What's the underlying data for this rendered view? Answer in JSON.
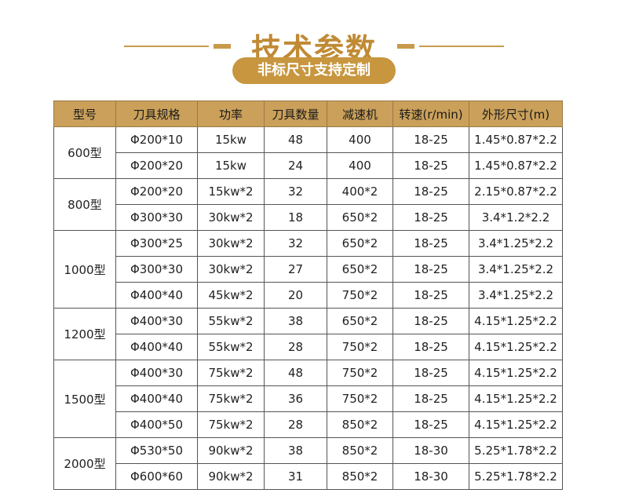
{
  "header": {
    "title": "技术参数",
    "subtitle": "非标尺寸支持定制"
  },
  "colors": {
    "gold": "#c89a4c",
    "header_bg": "#caa05a"
  },
  "table": {
    "columns": [
      "型号",
      "刀具规格",
      "功率",
      "刀具数量",
      "减速机",
      "转速(r/min)",
      "外形尺寸(m)"
    ],
    "groups": [
      {
        "model": "600型",
        "rows": [
          [
            "Φ200*10",
            "15kw",
            "48",
            "400",
            "18-25",
            "1.45*0.87*2.2"
          ],
          [
            "Φ200*20",
            "15kw",
            "24",
            "400",
            "18-25",
            "1.45*0.87*2.2"
          ]
        ]
      },
      {
        "model": "800型",
        "rows": [
          [
            "Φ200*20",
            "15kw*2",
            "32",
            "400*2",
            "18-25",
            "2.15*0.87*2.2"
          ],
          [
            "Φ300*30",
            "30kw*2",
            "18",
            "650*2",
            "18-25",
            "3.4*1.2*2.2"
          ]
        ]
      },
      {
        "model": "1000型",
        "rows": [
          [
            "Φ300*25",
            "30kw*2",
            "32",
            "650*2",
            "18-25",
            "3.4*1.25*2.2"
          ],
          [
            "Φ300*30",
            "30kw*2",
            "27",
            "650*2",
            "18-25",
            "3.4*1.25*2.2"
          ],
          [
            "Φ400*40",
            "45kw*2",
            "20",
            "750*2",
            "18-25",
            "3.4*1.25*2.2"
          ]
        ]
      },
      {
        "model": "1200型",
        "rows": [
          [
            "Φ400*30",
            "55kw*2",
            "38",
            "650*2",
            "18-25",
            "4.15*1.25*2.2"
          ],
          [
            "Φ400*40",
            "55kw*2",
            "28",
            "750*2",
            "18-25",
            "4.15*1.25*2.2"
          ]
        ]
      },
      {
        "model": "1500型",
        "rows": [
          [
            "Φ400*30",
            "75kw*2",
            "48",
            "750*2",
            "18-25",
            "4.15*1.25*2.2"
          ],
          [
            "Φ400*40",
            "75kw*2",
            "36",
            "750*2",
            "18-25",
            "4.15*1.25*2.2"
          ],
          [
            "Φ400*50",
            "75kw*2",
            "28",
            "850*2",
            "18-25",
            "4.15*1.25*2.2"
          ]
        ]
      },
      {
        "model": "2000型",
        "rows": [
          [
            "Φ530*50",
            "90kw*2",
            "38",
            "850*2",
            "18-30",
            "5.25*1.78*2.2"
          ],
          [
            "Φ600*60",
            "90kw*2",
            "31",
            "850*2",
            "18-30",
            "5.25*1.78*2.2"
          ]
        ]
      }
    ]
  }
}
